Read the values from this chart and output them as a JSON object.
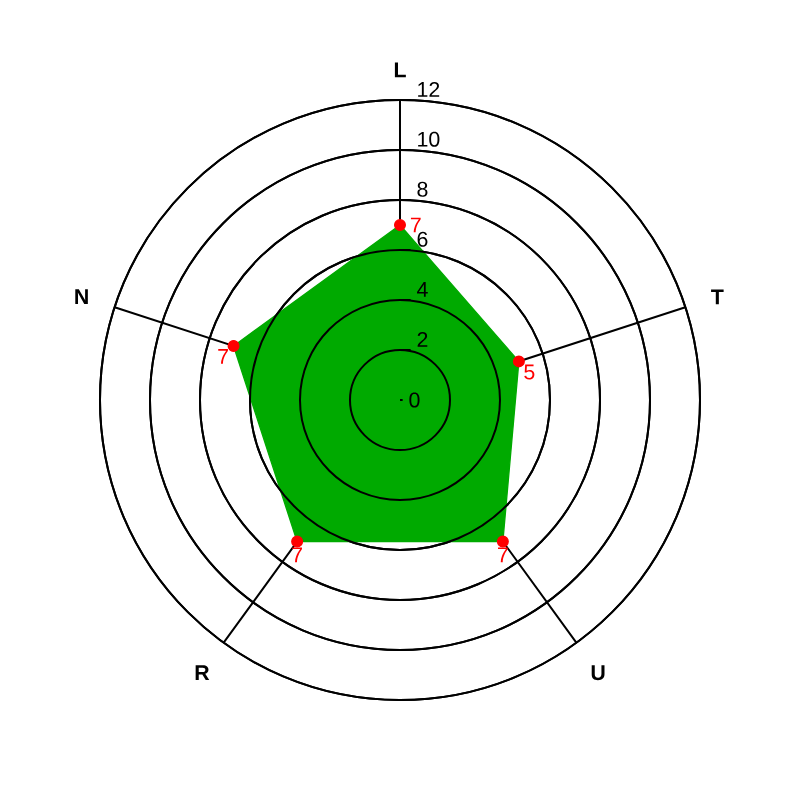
{
  "chart_data": {
    "type": "radar",
    "categories": [
      "L",
      "T",
      "U",
      "R",
      "N"
    ],
    "series": [
      {
        "color": "#00aa00",
        "values": [
          7,
          5,
          7,
          7,
          7
        ]
      }
    ],
    "ylim": [
      0,
      12
    ],
    "yticks": [
      0,
      2,
      4,
      6,
      8,
      10,
      12
    ],
    "grid": true,
    "marker": "circle",
    "data_labels": true
  }
}
